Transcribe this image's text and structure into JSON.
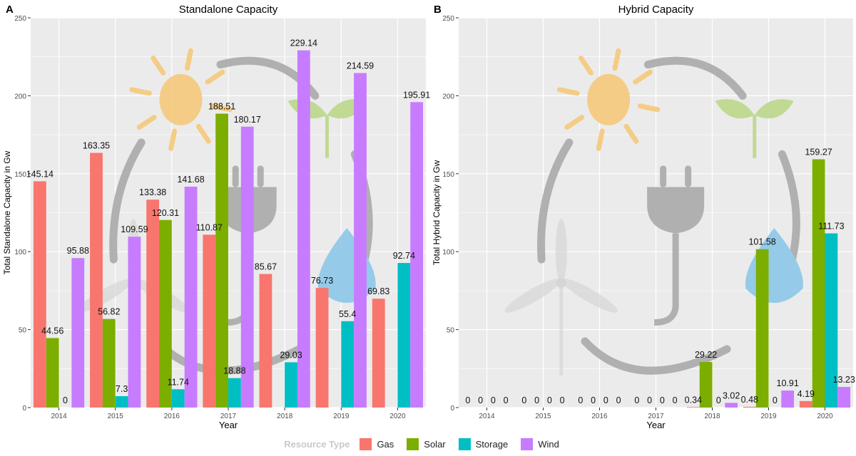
{
  "chart_data": [
    {
      "type": "bar",
      "panel_label": "A",
      "title": "Standalone Capacity",
      "xlabel": "Year",
      "ylabel": "Total Standalone Capacity in Gw",
      "ylim": [
        0,
        250
      ],
      "yticks": [
        0,
        50,
        100,
        150,
        200,
        250
      ],
      "categories": [
        "2014",
        "2015",
        "2016",
        "2017",
        "2018",
        "2019",
        "2020"
      ],
      "series": [
        {
          "name": "Gas",
          "values": [
            145.14,
            163.35,
            133.38,
            110.87,
            85.67,
            76.73,
            69.83
          ],
          "labels": [
            "145.14",
            "163.35",
            "133.38",
            "110.87",
            "85.67",
            "76.73",
            "69.83"
          ]
        },
        {
          "name": "Solar",
          "values": [
            44.56,
            56.82,
            120.31,
            188.51,
            null,
            null,
            null
          ],
          "labels": [
            "44.56",
            "56.82",
            "120.31",
            "188.51",
            null,
            null,
            null
          ]
        },
        {
          "name": "Storage",
          "values": [
            0,
            7.3,
            11.74,
            18.88,
            29.03,
            55.4,
            92.74
          ],
          "labels": [
            "0",
            "7.3",
            "11.74",
            "18.88",
            "29.03",
            "55.4",
            "92.74"
          ]
        },
        {
          "name": "Wind",
          "values": [
            95.88,
            109.59,
            141.68,
            180.17,
            229.14,
            214.59,
            195.91
          ],
          "labels": [
            "95.88",
            "109.59",
            "141.68",
            "180.17",
            "229.14",
            "214.59",
            "195.91"
          ]
        }
      ],
      "grid": true
    },
    {
      "type": "bar",
      "panel_label": "B",
      "title": "Hybrid Capacity",
      "xlabel": "Year",
      "ylabel": "Total Hybrid Capacity in Gw",
      "ylim": [
        0,
        250
      ],
      "yticks": [
        0,
        50,
        100,
        150,
        200,
        250
      ],
      "categories": [
        "2014",
        "2015",
        "2016",
        "2017",
        "2018",
        "2019",
        "2020"
      ],
      "series": [
        {
          "name": "Gas",
          "values": [
            0,
            0,
            0,
            0,
            0.34,
            0.48,
            4.19
          ],
          "labels": [
            "0",
            "0",
            "0",
            "0",
            "0.34",
            "0.48",
            "4.19"
          ]
        },
        {
          "name": "Solar",
          "values": [
            0,
            0,
            0,
            0,
            29.22,
            101.58,
            159.27
          ],
          "labels": [
            "0",
            "0",
            "0",
            "0",
            "29.22",
            "101.58",
            "159.27"
          ]
        },
        {
          "name": "Storage",
          "values": [
            0,
            0,
            0,
            0,
            0,
            0,
            111.73
          ],
          "labels": [
            "0",
            "0",
            "0",
            "0",
            "0",
            "0",
            "111.73"
          ]
        },
        {
          "name": "Wind",
          "values": [
            0,
            0,
            0,
            0,
            3.02,
            10.91,
            13.23
          ],
          "labels": [
            "0",
            "0",
            "0",
            "0",
            "3.02",
            "10.91",
            "13.23"
          ]
        }
      ],
      "grid": true
    }
  ],
  "legend": {
    "title": "Resource Type",
    "placement": "bottom",
    "items": [
      {
        "name": "Gas",
        "color": "#F8766D"
      },
      {
        "name": "Solar",
        "color": "#7CAE00"
      },
      {
        "name": "Storage",
        "color": "#00BFC4"
      },
      {
        "name": "Wind",
        "color": "#C77CFF"
      }
    ]
  },
  "colors": {
    "panel_bg": "#EBEBEB",
    "grid": "#FFFFFF"
  }
}
